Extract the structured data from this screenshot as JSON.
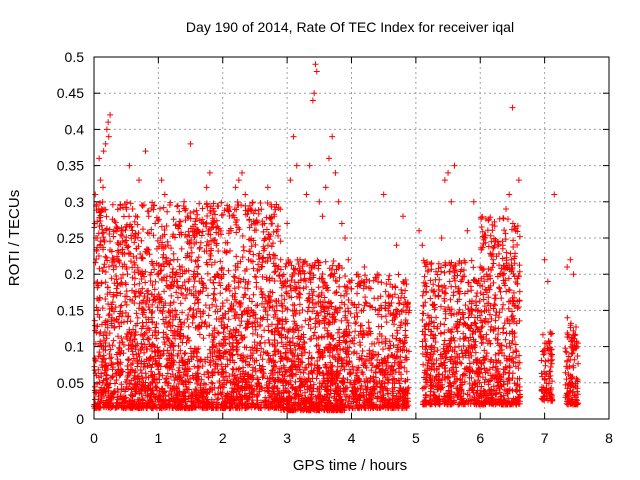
{
  "colors": {
    "marker": "#ff0000",
    "grid": "#a0a0a0",
    "frame": "#000000",
    "background": "#ffffff"
  },
  "chart_data": {
    "type": "scatter",
    "title": "Day 190 of 2014, Rate Of TEC Index for receiver iqal",
    "xlabel": "GPS time / hours",
    "ylabel": "ROTI / TECUs",
    "xlim": [
      0,
      8
    ],
    "ylim": [
      0,
      0.5
    ],
    "xticks": [
      0,
      1,
      2,
      3,
      4,
      5,
      6,
      7,
      8
    ],
    "xtick_labels": [
      "0",
      "1",
      "2",
      "3",
      "4",
      "5",
      "6",
      "7",
      "8"
    ],
    "yticks": [
      0,
      0.05,
      0.1,
      0.15,
      0.2,
      0.25,
      0.3,
      0.35,
      0.4,
      0.45,
      0.5
    ],
    "ytick_labels": [
      "0",
      "0.05",
      "0.1",
      "0.15",
      "0.2",
      "0.25",
      "0.3",
      "0.35",
      "0.4",
      "0.45",
      "0.5"
    ],
    "grid": true,
    "marker": "+",
    "series": [
      {
        "name": "ROTI",
        "points": [
          [
            0.02,
            0.31
          ],
          [
            0.05,
            0.25
          ],
          [
            0.08,
            0.36
          ],
          [
            0.1,
            0.33
          ],
          [
            0.12,
            0.29
          ],
          [
            0.15,
            0.37
          ],
          [
            0.18,
            0.38
          ],
          [
            0.2,
            0.4
          ],
          [
            0.22,
            0.41
          ],
          [
            0.25,
            0.42
          ],
          [
            0.23,
            0.39
          ],
          [
            0.14,
            0.32
          ],
          [
            0.06,
            0.15
          ],
          [
            0.1,
            0.12
          ],
          [
            0.03,
            0.08
          ],
          [
            0.15,
            0.1
          ],
          [
            0.2,
            0.06
          ],
          [
            0.3,
            0.22
          ],
          [
            0.35,
            0.18
          ],
          [
            0.4,
            0.09
          ],
          [
            0.45,
            0.26
          ],
          [
            0.5,
            0.21
          ],
          [
            0.55,
            0.35
          ],
          [
            0.6,
            0.29
          ],
          [
            0.65,
            0.12
          ],
          [
            0.7,
            0.33
          ],
          [
            0.75,
            0.18
          ],
          [
            0.8,
            0.37
          ],
          [
            0.85,
            0.28
          ],
          [
            0.9,
            0.14
          ],
          [
            0.95,
            0.27
          ],
          [
            1.0,
            0.2
          ],
          [
            1.05,
            0.33
          ],
          [
            1.1,
            0.31
          ],
          [
            1.15,
            0.24
          ],
          [
            1.2,
            0.17
          ],
          [
            1.3,
            0.22
          ],
          [
            1.4,
            0.3
          ],
          [
            1.45,
            0.28
          ],
          [
            1.5,
            0.38
          ],
          [
            1.6,
            0.21
          ],
          [
            1.7,
            0.27
          ],
          [
            1.75,
            0.32
          ],
          [
            1.8,
            0.34
          ],
          [
            1.9,
            0.24
          ],
          [
            2.0,
            0.16
          ],
          [
            2.1,
            0.26
          ],
          [
            2.2,
            0.32
          ],
          [
            2.25,
            0.33
          ],
          [
            2.3,
            0.34
          ],
          [
            2.35,
            0.31
          ],
          [
            2.4,
            0.22
          ],
          [
            2.5,
            0.27
          ],
          [
            2.6,
            0.21
          ],
          [
            2.7,
            0.32
          ],
          [
            2.8,
            0.28
          ],
          [
            2.9,
            0.22
          ],
          [
            3.0,
            0.27
          ],
          [
            3.05,
            0.33
          ],
          [
            3.1,
            0.39
          ],
          [
            3.15,
            0.35
          ],
          [
            3.2,
            0.22
          ],
          [
            3.3,
            0.31
          ],
          [
            3.35,
            0.35
          ],
          [
            3.4,
            0.44
          ],
          [
            3.42,
            0.45
          ],
          [
            3.44,
            0.49
          ],
          [
            3.46,
            0.48
          ],
          [
            3.5,
            0.3
          ],
          [
            3.55,
            0.28
          ],
          [
            3.6,
            0.32
          ],
          [
            3.65,
            0.36
          ],
          [
            3.7,
            0.39
          ],
          [
            3.75,
            0.34
          ],
          [
            3.8,
            0.3
          ],
          [
            3.85,
            0.27
          ],
          [
            3.9,
            0.25
          ],
          [
            3.95,
            0.22
          ],
          [
            4.0,
            0.18
          ],
          [
            4.1,
            0.2
          ],
          [
            4.2,
            0.21
          ],
          [
            4.3,
            0.18
          ],
          [
            4.4,
            0.2
          ],
          [
            4.5,
            0.31
          ],
          [
            4.6,
            0.17
          ],
          [
            4.7,
            0.24
          ],
          [
            4.8,
            0.28
          ],
          [
            4.9,
            0.15
          ],
          [
            5.05,
            0.26
          ],
          [
            5.1,
            0.24
          ],
          [
            5.2,
            0.13
          ],
          [
            5.3,
            0.17
          ],
          [
            5.4,
            0.25
          ],
          [
            5.45,
            0.33
          ],
          [
            5.5,
            0.34
          ],
          [
            5.55,
            0.3
          ],
          [
            5.6,
            0.35
          ],
          [
            5.7,
            0.19
          ],
          [
            5.8,
            0.26
          ],
          [
            5.9,
            0.3
          ],
          [
            6.0,
            0.21
          ],
          [
            6.1,
            0.2
          ],
          [
            6.2,
            0.22
          ],
          [
            6.3,
            0.18
          ],
          [
            6.35,
            0.24
          ],
          [
            6.4,
            0.29
          ],
          [
            6.45,
            0.31
          ],
          [
            6.5,
            0.43
          ],
          [
            6.55,
            0.26
          ],
          [
            6.6,
            0.33
          ],
          [
            7.0,
            0.22
          ],
          [
            7.05,
            0.19
          ],
          [
            7.15,
            0.31
          ],
          [
            7.35,
            0.21
          ],
          [
            7.4,
            0.22
          ],
          [
            7.45,
            0.2
          ]
        ]
      }
    ]
  }
}
